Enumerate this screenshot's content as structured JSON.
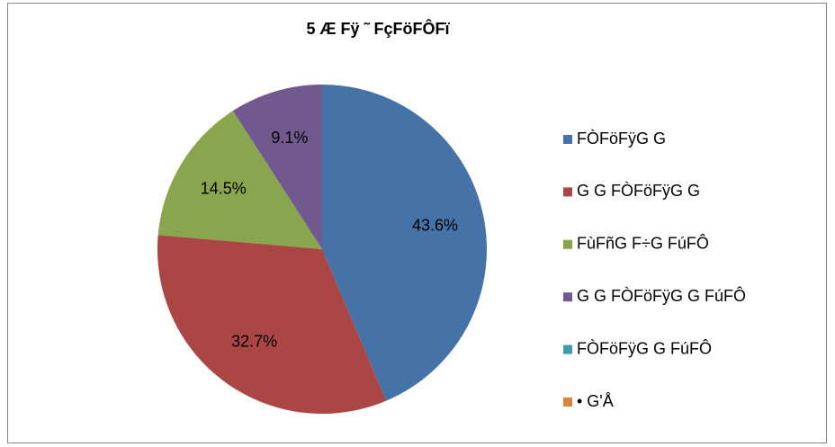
{
  "chart_data": {
    "type": "pie",
    "title": "5  Æ  Fÿ ˜  FçFöFÔFï",
    "categories": [
      "FÒFöFÿG G",
      "G G FÒFöFÿG G",
      "FùFñG F÷G FúFÔ",
      "G G FÒFöFÿG G FúFÔ",
      "FÒFöFÿG G FúFÔ",
      "• G'Å"
    ],
    "values": [
      43.6,
      32.7,
      14.5,
      9.1,
      0,
      0
    ],
    "value_labels": [
      "43.6%",
      "32.7%",
      "14.5%",
      "9.1%",
      null,
      null
    ],
    "colors": [
      "#4572a7",
      "#aa4643",
      "#89a54e",
      "#71588f",
      "#4198af",
      "#db843d"
    ],
    "legend": "right"
  }
}
